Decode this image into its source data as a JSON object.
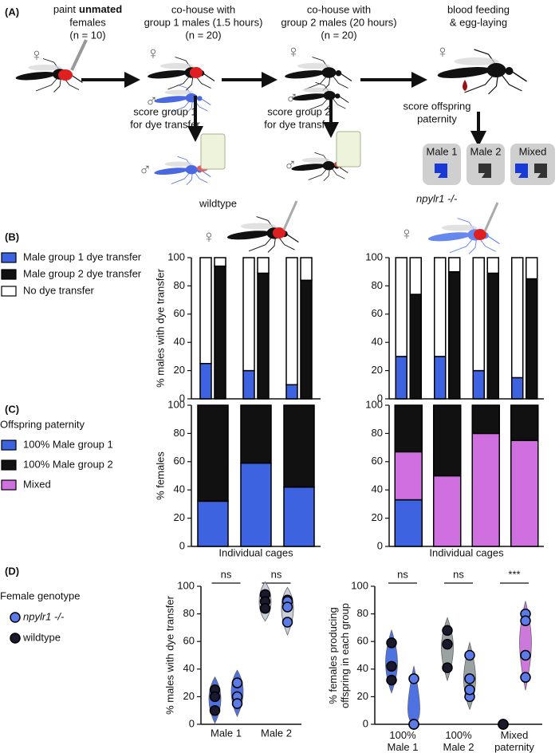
{
  "panel_a": {
    "label": "(A)",
    "steps": [
      {
        "line1": "paint",
        "bold": "unmated",
        "line2": "females",
        "line3": "(n = 10)"
      },
      {
        "line1": "co-house with",
        "line2": "group 1 males (1.5 hours)",
        "line3": "(n = 20)"
      },
      {
        "line1": "co-house with",
        "line2": "group 2 males (20 hours)",
        "line3": "(n = 20)"
      },
      {
        "line1": "blood feeding",
        "line2": "& egg-laying"
      }
    ],
    "scores": [
      {
        "line1": "score group 1",
        "line2": "for dye transfer"
      },
      {
        "line1": "score group 2",
        "line2": "for dye transfer"
      },
      {
        "line1": "score offspring",
        "line2": "paternity"
      }
    ],
    "outcomes": [
      "Male 1",
      "Male 2",
      "Mixed"
    ],
    "female_symbol": "♀",
    "male_symbol": "♂"
  },
  "panel_labels": [
    "(B)",
    "(C)",
    "(D)"
  ],
  "chart_data": [
    {
      "type": "stacked_bar",
      "subtitle": "wildtype",
      "y_label": "% males with dye transfer",
      "categories": [
        null,
        null,
        null,
        null,
        null,
        null
      ],
      "ylim": [
        0,
        100
      ],
      "yticks": [
        0,
        20,
        40,
        60,
        80,
        100
      ],
      "series": [
        {
          "name": "Male group 1 dye transfer",
          "color": "#3d63e0",
          "values": [
            25,
            null,
            20,
            null,
            10,
            null
          ]
        },
        {
          "name": "Male group 2 dye transfer",
          "color": "#111111",
          "values": [
            null,
            94,
            null,
            89,
            null,
            84
          ]
        },
        {
          "name": "No dye transfer",
          "color": "#ffffff",
          "values": [
            75,
            6,
            80,
            11,
            90,
            16
          ]
        }
      ]
    },
    {
      "type": "stacked_bar",
      "subtitle": "npylr1 -/-",
      "categories": [
        null,
        null,
        null,
        null,
        null,
        null,
        null,
        null
      ],
      "ylim": [
        0,
        100
      ],
      "yticks": [
        0,
        20,
        40,
        60,
        80,
        100
      ],
      "series": [
        {
          "color": "#3d63e0",
          "values": [
            30,
            null,
            30,
            null,
            20,
            null,
            15,
            null
          ]
        },
        {
          "color": "#111111",
          "values": [
            null,
            74,
            null,
            90,
            null,
            89,
            null,
            85
          ]
        },
        {
          "color": "#ffffff",
          "values": [
            70,
            26,
            70,
            10,
            80,
            11,
            85,
            15
          ]
        }
      ]
    },
    {
      "type": "stacked_bar",
      "y_label": "% females",
      "x_label": "Individual cages",
      "categories": [
        null,
        null,
        null
      ],
      "ylim": [
        0,
        100
      ],
      "yticks": [
        0,
        20,
        40,
        60,
        80,
        100
      ],
      "series": [
        {
          "color": "#3d63e0",
          "values": [
            32,
            59,
            42
          ]
        },
        {
          "color": "#111111",
          "values": [
            68,
            41,
            58
          ]
        }
      ]
    },
    {
      "type": "stacked_bar",
      "x_label": "Individual cages",
      "legend_title": "Offspring paternity",
      "categories": [
        null,
        null,
        null,
        null
      ],
      "ylim": [
        0,
        100
      ],
      "yticks": [
        0,
        20,
        40,
        60,
        80,
        100
      ],
      "stack_order": [
        0,
        2,
        1
      ],
      "series": [
        {
          "name": "100% Male group 1",
          "color": "#3d63e0",
          "values": [
            33,
            0,
            0,
            0
          ]
        },
        {
          "name": "100% Male group 2",
          "color": "#111111",
          "values": [
            33,
            50,
            20,
            25
          ]
        },
        {
          "name": "Mixed",
          "color": "#cf6fe0",
          "values": [
            34,
            50,
            80,
            75
          ]
        }
      ]
    },
    {
      "type": "violin",
      "y_label": "% males with dye transfer",
      "legend_title": "Female genotype",
      "categories": [
        "Male 1",
        "Male 2"
      ],
      "category_colors": [
        "#3d63e0",
        "#c4ccd6"
      ],
      "significance": [
        "ns",
        "ns"
      ],
      "ylim": [
        0,
        100
      ],
      "yticks": [
        0,
        20,
        40,
        60,
        80,
        100
      ],
      "series": [
        {
          "name": "npylr1 -/-",
          "color": "#5b7be8",
          "values": [
            [
              30,
              30,
              20,
              15
            ],
            [
              74,
              90,
              89,
              85
            ]
          ]
        },
        {
          "name": "wildtype",
          "color": "#1a1a2e",
          "values": [
            [
              25,
              20,
              10
            ],
            [
              94,
              89,
              84
            ]
          ]
        }
      ]
    },
    {
      "type": "violin",
      "y_label": "% females producing offspring in each group",
      "categories": [
        "100% Male 1",
        "100% Male 2",
        "Mixed paternity"
      ],
      "category_colors": [
        "#3d63e0",
        "#8e9a98",
        "#c86ad8"
      ],
      "significance": [
        "ns",
        "ns",
        "***"
      ],
      "ylim": [
        0,
        100
      ],
      "yticks": [
        0,
        20,
        40,
        60,
        80,
        100
      ],
      "series": [
        {
          "color": "#5b7be8",
          "values": [
            [
              33,
              0,
              0,
              0
            ],
            [
              33,
              50,
              20,
              25
            ],
            [
              34,
              50,
              80,
              75
            ]
          ]
        },
        {
          "color": "#1a1a2e",
          "values": [
            [
              32,
              59,
              42
            ],
            [
              68,
              41,
              58
            ],
            [
              0,
              0,
              0
            ]
          ]
        }
      ]
    }
  ]
}
